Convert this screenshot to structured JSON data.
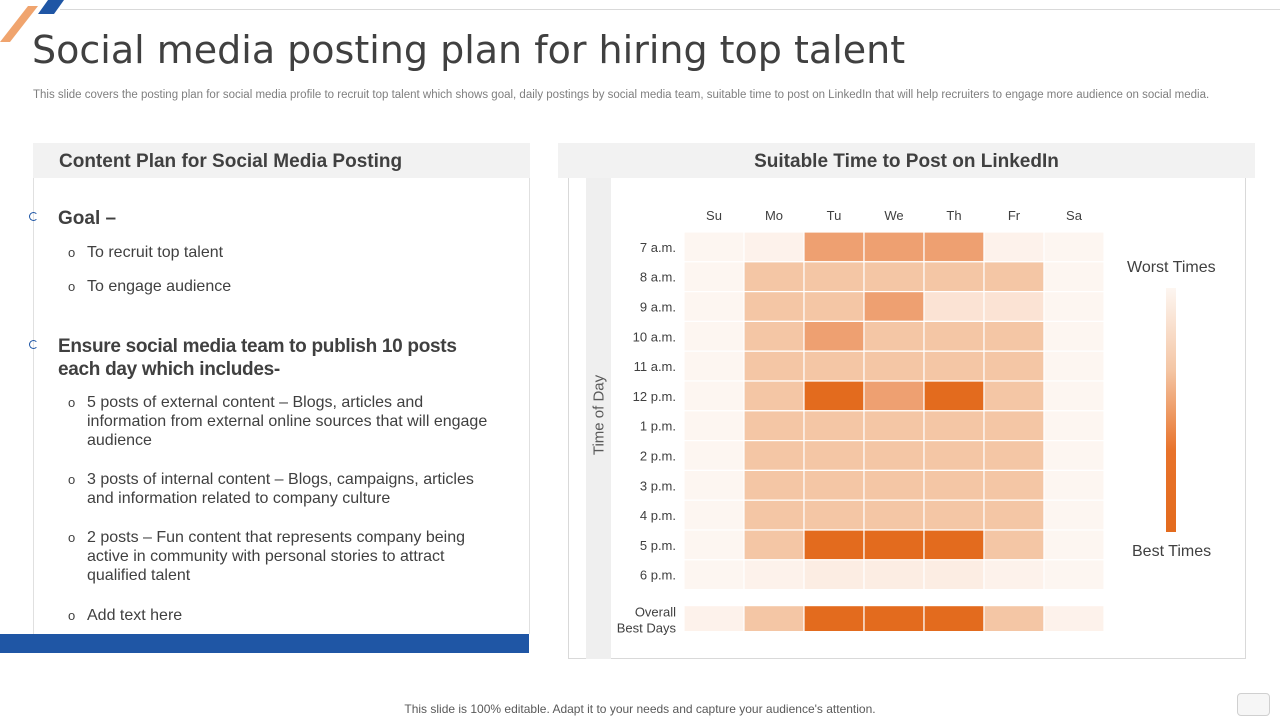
{
  "slide": {
    "title": "Social media posting plan for hiring top talent",
    "subtitle": "This slide covers the posting plan for social media profile to recruit top talent which shows goal, daily postings by social media team, suitable time to post on LinkedIn that will help recruiters to engage more audience on social media.",
    "footer": "This slide is 100% editable. Adapt it to your needs and capture your audience's attention."
  },
  "colors": {
    "accent_blue": "#1f56a5",
    "accent_orange": "#e36b1e"
  },
  "content_plan": {
    "heading": "Content Plan for Social Media Posting",
    "goal": {
      "heading": "Goal –",
      "items": [
        "To recruit top talent",
        "To engage audience"
      ]
    },
    "ensure": {
      "heading": "Ensure social media team to publish 10 posts each day which includes-",
      "items": [
        "5 posts of external content – Blogs, articles and information from external online sources that will engage audience",
        "3 posts of internal content – Blogs, campaigns, articles and information related to company culture",
        "2 posts – Fun content that represents company being active in community with personal stories to attract qualified talent",
        "Add text here"
      ]
    },
    "bullet_marker": "o"
  },
  "linkedin": {
    "heading": "Suitable Time to Post on LinkedIn",
    "legend_top": "Worst Times",
    "legend_bottom": "Best Times"
  },
  "chart_data": {
    "type": "heatmap",
    "title": "Suitable Time to Post on LinkedIn",
    "ylabel": "Time of Day",
    "x_categories": [
      "Su",
      "Mo",
      "Tu",
      "We",
      "Th",
      "Fr",
      "Sa"
    ],
    "y_categories": [
      "7 a.m.",
      "8 a.m.",
      "9 a.m.",
      "10 a.m.",
      "11 a.m.",
      "12 p.m.",
      "1 p.m.",
      "2 p.m.",
      "3 p.m.",
      "4 p.m.",
      "5 p.m.",
      "6 p.m."
    ],
    "scale_note": "0 = worst, 4 = best",
    "values": [
      [
        0,
        0.2,
        3,
        3,
        3,
        0.2,
        0
      ],
      [
        0,
        2,
        2,
        2,
        2,
        2,
        0
      ],
      [
        0,
        2,
        2,
        3,
        1,
        1,
        0
      ],
      [
        0,
        2,
        3,
        2,
        2,
        2,
        0
      ],
      [
        0,
        2,
        2,
        2,
        2,
        2,
        0
      ],
      [
        0,
        2,
        4,
        3,
        4,
        2,
        0
      ],
      [
        0,
        2,
        2,
        2,
        2,
        2,
        0
      ],
      [
        0,
        2,
        2,
        2,
        2,
        2,
        0
      ],
      [
        0,
        2,
        2,
        2,
        2,
        2,
        0
      ],
      [
        0,
        2,
        2,
        2,
        2,
        2,
        0
      ],
      [
        0,
        2,
        4,
        4,
        4,
        2,
        0
      ],
      [
        0,
        0.2,
        0.5,
        0.5,
        0.5,
        0.2,
        0
      ]
    ],
    "summary_row": {
      "label_line1": "Overall",
      "label_line2": "Best Days",
      "values": [
        0.2,
        2,
        4,
        4,
        4,
        2,
        0.2
      ]
    },
    "legend": [
      "Worst Times",
      "Best Times"
    ],
    "color_scale": [
      "#fdf6f1",
      "#fbe3d4",
      "#f4c6a5",
      "#eea071",
      "#e36b1e"
    ]
  }
}
